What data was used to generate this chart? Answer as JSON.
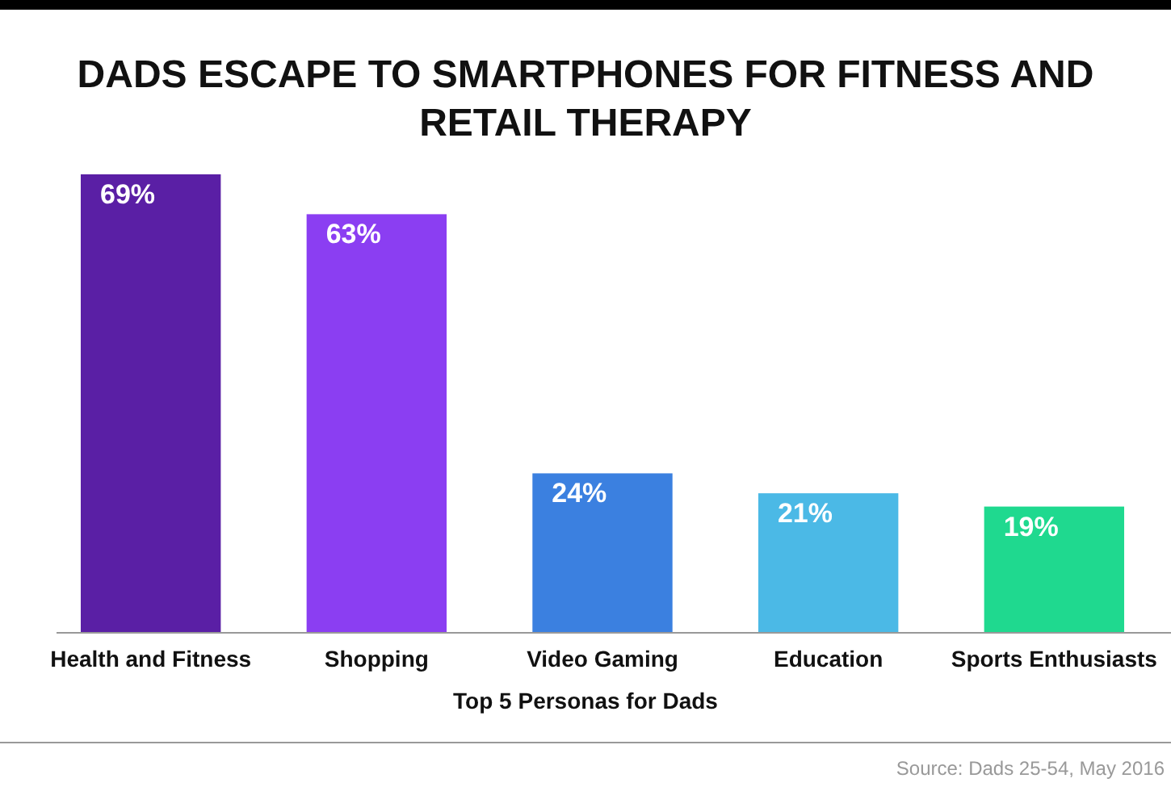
{
  "chart_data": {
    "type": "bar",
    "title": "DADS ESCAPE TO SMARTPHONES FOR FITNESS AND RETAIL THERAPY",
    "xlabel": "Top 5 Personas for Dads",
    "categories": [
      "Health and Fitness",
      "Shopping",
      "Video Gaming",
      "Education",
      "Sports Enthusiasts"
    ],
    "values": [
      69,
      63,
      24,
      21,
      19
    ],
    "value_labels": [
      "69%",
      "63%",
      "24%",
      "21%",
      "19%"
    ],
    "colors": [
      "#5a1fa5",
      "#8b3ef2",
      "#3b80e0",
      "#4bb9e6",
      "#1fd98f"
    ],
    "annotations": [
      "Source: Dads 25-54, May 2016"
    ],
    "grid": false
  }
}
